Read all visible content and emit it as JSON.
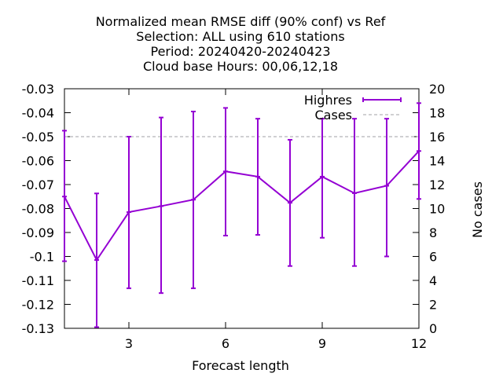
{
  "chart_data": {
    "type": "line",
    "title_lines": [
      "Normalized mean RMSE diff (90% conf) vs Ref",
      "Selection: ALL using   610 stations",
      "Period: 20240420-20240423",
      "Cloud base   Hours: 00,06,12,18"
    ],
    "xlabel": "Forecast length",
    "ylabel": "",
    "y2label": "No cases",
    "xlim": [
      1,
      12
    ],
    "ylim": [
      -0.13,
      -0.03
    ],
    "y2lim": [
      0,
      20
    ],
    "xticks": [
      3,
      6,
      9,
      12
    ],
    "yticks": [
      -0.13,
      -0.12,
      -0.11,
      -0.1,
      -0.09,
      -0.08,
      -0.07,
      -0.06,
      -0.05,
      -0.04,
      -0.03
    ],
    "ytick_labels": [
      "-0.13",
      "-0.12",
      "-0.11",
      "-0.1",
      "-0.09",
      "-0.08",
      "-0.07",
      "-0.06",
      "-0.05",
      "-0.04",
      "-0.03"
    ],
    "y2ticks": [
      0,
      2,
      4,
      6,
      8,
      10,
      12,
      14,
      16,
      18,
      20
    ],
    "grid": false,
    "legend_position": "top-right",
    "series": [
      {
        "name": "Highres",
        "color": "#9400d3",
        "axis": "y",
        "x": [
          1,
          2,
          3,
          4,
          5,
          6,
          7,
          8,
          9,
          10,
          11,
          12
        ],
        "y": [
          -0.075,
          -0.1015,
          -0.0815,
          -0.079,
          -0.0763,
          -0.0645,
          -0.0667,
          -0.0776,
          -0.0667,
          -0.0736,
          -0.0705,
          -0.056
        ],
        "err_low": [
          -0.102,
          -0.1295,
          -0.1133,
          -0.1153,
          -0.1133,
          -0.0913,
          -0.091,
          -0.104,
          -0.0922,
          -0.104,
          -0.1,
          -0.076
        ],
        "err_high": [
          -0.0475,
          -0.0737,
          -0.05,
          -0.042,
          -0.0395,
          -0.038,
          -0.0425,
          -0.0513,
          -0.0425,
          -0.0425,
          -0.0425,
          -0.036
        ]
      },
      {
        "name": "Cases",
        "color": "#a0a0a4",
        "axis": "y2",
        "style": "dashed",
        "x": [
          1,
          12
        ],
        "y": [
          16,
          16
        ]
      }
    ]
  }
}
